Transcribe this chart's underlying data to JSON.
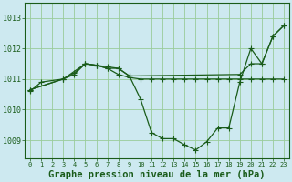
{
  "background_color": "#cde9f0",
  "grid_color": "#99cc99",
  "line_color": "#1a5c1a",
  "xlabel": "Graphe pression niveau de la mer (hPa)",
  "xlabel_fontsize": 7.5,
  "xlim": [
    -0.5,
    23.5
  ],
  "ylim": [
    1008.4,
    1013.5
  ],
  "yticks": [
    1009,
    1010,
    1011,
    1012,
    1013
  ],
  "xticks": [
    0,
    1,
    2,
    3,
    4,
    5,
    6,
    7,
    8,
    9,
    10,
    11,
    12,
    13,
    14,
    15,
    16,
    17,
    18,
    19,
    20,
    21,
    22,
    23
  ],
  "line1_x": [
    0,
    3,
    5,
    6,
    7,
    8,
    9,
    10,
    11,
    12,
    13,
    14,
    15,
    16,
    17,
    18,
    19,
    20,
    21,
    22,
    23
  ],
  "line1_y": [
    1010.65,
    1011.0,
    1011.5,
    1011.45,
    1011.35,
    1011.15,
    1011.05,
    1011.0,
    1011.0,
    1011.0,
    1011.0,
    1011.0,
    1011.0,
    1011.0,
    1011.0,
    1011.0,
    1011.0,
    1011.0,
    1011.0,
    1011.0,
    1011.0
  ],
  "line2_x": [
    0,
    3,
    4,
    5,
    6,
    7,
    8,
    9,
    19,
    20,
    21,
    22,
    23
  ],
  "line2_y": [
    1010.65,
    1011.0,
    1011.15,
    1011.5,
    1011.45,
    1011.35,
    1011.35,
    1011.1,
    1011.15,
    1011.5,
    1011.5,
    1012.4,
    1012.75
  ],
  "line3_x": [
    0,
    1,
    3,
    4,
    5,
    6,
    7,
    8,
    9,
    10,
    11,
    12,
    13,
    14,
    15,
    16,
    17,
    18,
    19,
    20,
    21,
    22,
    23
  ],
  "line3_y": [
    1010.6,
    1010.9,
    1011.0,
    1011.2,
    1011.5,
    1011.45,
    1011.4,
    1011.35,
    1011.1,
    1010.35,
    1009.25,
    1009.05,
    1009.05,
    1008.85,
    1008.68,
    1008.95,
    1009.4,
    1009.4,
    1010.9,
    1012.0,
    1011.5,
    1012.4,
    1012.75
  ]
}
